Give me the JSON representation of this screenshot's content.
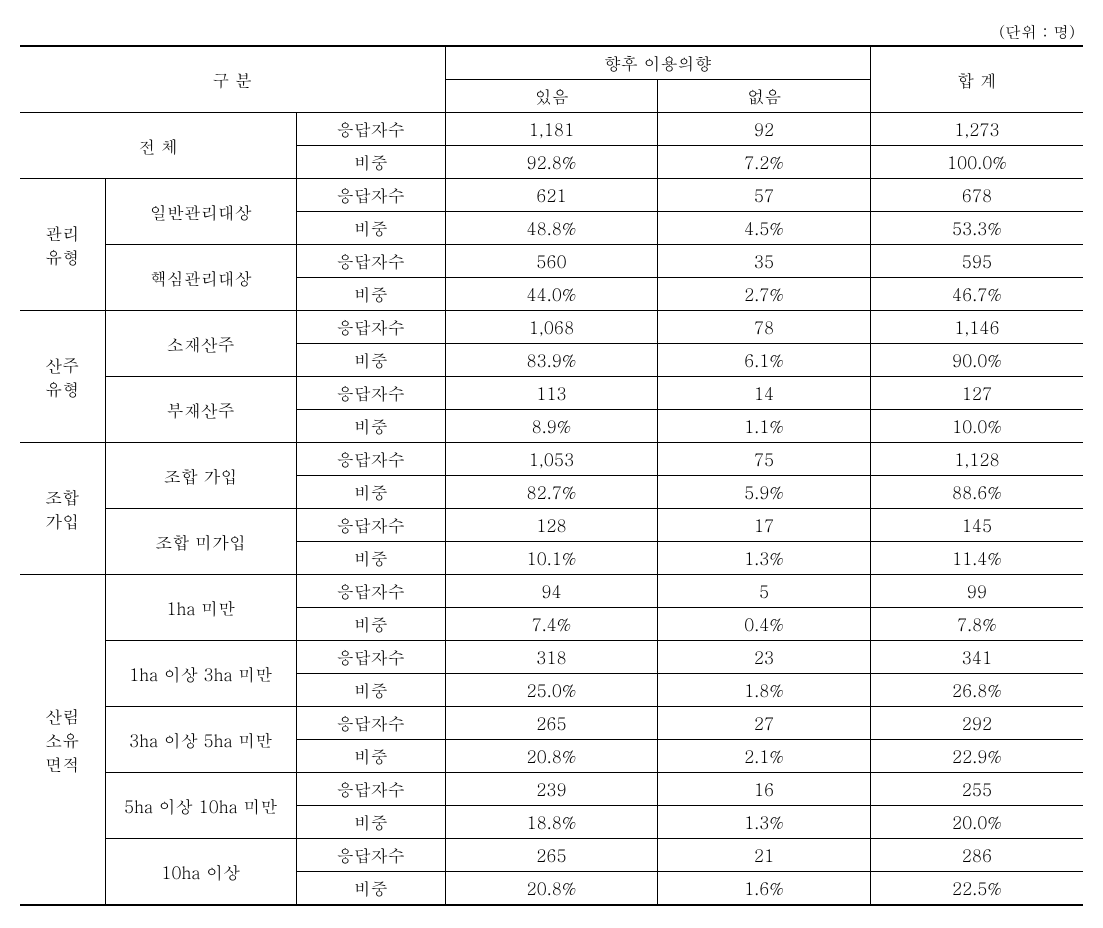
{
  "unit_label": "(단위 : 명)",
  "headers": {
    "category": "구 분",
    "intention": "향후 이용의향",
    "yes": "있음",
    "no": "없음",
    "total": "합 계"
  },
  "metrics": {
    "count": "응답자수",
    "ratio": "비중"
  },
  "groups": {
    "total": {
      "label": "전 체",
      "count": {
        "yes": "1,181",
        "no": "92",
        "total": "1,273"
      },
      "ratio": {
        "yes": "92.8%",
        "no": "7.2%",
        "total": "100.0%"
      }
    },
    "mgmt": {
      "label": "관리\n유형",
      "subs": {
        "general": {
          "label": "일반관리대상",
          "count": {
            "yes": "621",
            "no": "57",
            "total": "678"
          },
          "ratio": {
            "yes": "48.8%",
            "no": "4.5%",
            "total": "53.3%"
          }
        },
        "core": {
          "label": "핵심관리대상",
          "count": {
            "yes": "560",
            "no": "35",
            "total": "595"
          },
          "ratio": {
            "yes": "44.0%",
            "no": "2.7%",
            "total": "46.7%"
          }
        }
      }
    },
    "owner": {
      "label": "산주\n유형",
      "subs": {
        "resident": {
          "label": "소재산주",
          "count": {
            "yes": "1,068",
            "no": "78",
            "total": "1,146"
          },
          "ratio": {
            "yes": "83.9%",
            "no": "6.1%",
            "total": "90.0%"
          }
        },
        "absent": {
          "label": "부재산주",
          "count": {
            "yes": "113",
            "no": "14",
            "total": "127"
          },
          "ratio": {
            "yes": "8.9%",
            "no": "1.1%",
            "total": "10.0%"
          }
        }
      }
    },
    "union": {
      "label": "조합\n가입",
      "subs": {
        "member": {
          "label": "조합 가입",
          "count": {
            "yes": "1,053",
            "no": "75",
            "total": "1,128"
          },
          "ratio": {
            "yes": "82.7%",
            "no": "5.9%",
            "total": "88.6%"
          }
        },
        "nonmember": {
          "label": "조합 미가입",
          "count": {
            "yes": "128",
            "no": "17",
            "total": "145"
          },
          "ratio": {
            "yes": "10.1%",
            "no": "1.3%",
            "total": "11.4%"
          }
        }
      }
    },
    "area": {
      "label": "산림\n소유\n면적",
      "subs": {
        "a1": {
          "label": "1ha 미만",
          "count": {
            "yes": "94",
            "no": "5",
            "total": "99"
          },
          "ratio": {
            "yes": "7.4%",
            "no": "0.4%",
            "total": "7.8%"
          }
        },
        "a2": {
          "label": "1ha 이상 3ha 미만",
          "count": {
            "yes": "318",
            "no": "23",
            "total": "341"
          },
          "ratio": {
            "yes": "25.0%",
            "no": "1.8%",
            "total": "26.8%"
          }
        },
        "a3": {
          "label": "3ha 이상 5ha 미만",
          "count": {
            "yes": "265",
            "no": "27",
            "total": "292"
          },
          "ratio": {
            "yes": "20.8%",
            "no": "2.1%",
            "total": "22.9%"
          }
        },
        "a4": {
          "label": "5ha 이상 10ha 미만",
          "count": {
            "yes": "239",
            "no": "16",
            "total": "255"
          },
          "ratio": {
            "yes": "18.8%",
            "no": "1.3%",
            "total": "20.0%"
          }
        },
        "a5": {
          "label": "10ha 이상",
          "count": {
            "yes": "265",
            "no": "21",
            "total": "286"
          },
          "ratio": {
            "yes": "20.8%",
            "no": "1.6%",
            "total": "22.5%"
          }
        }
      }
    }
  }
}
